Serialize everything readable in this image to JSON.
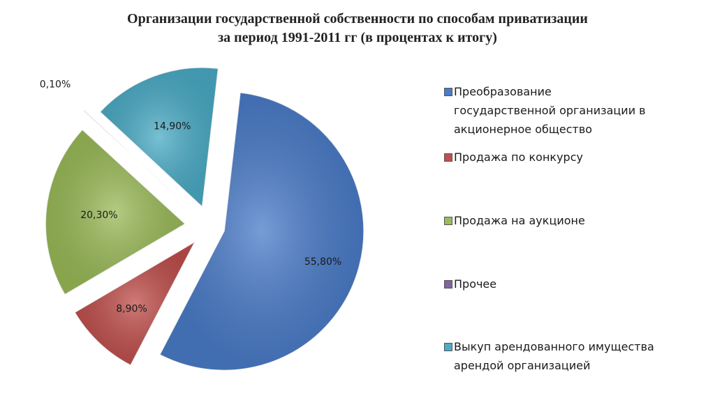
{
  "chart_data": {
    "type": "pie",
    "title_lines": [
      "Организации  государственной собственности по способам приватизации",
      "за период 1991-2011 гг (в процентах к итогу)"
    ],
    "unit": "%",
    "slices": [
      {
        "name": "Преобразование государственной организации в акционерное общество",
        "value": 55.8,
        "label": "55,80%",
        "color": "#4a7cc9"
      },
      {
        "name": "Продажа по конкурсу",
        "value": 8.9,
        "label": "8,90%",
        "color": "#c0504d"
      },
      {
        "name": "Продажа на аукционе",
        "value": 20.3,
        "label": "20,30%",
        "color": "#9bbb59"
      },
      {
        "name": "Прочее",
        "value": 0.1,
        "label": "0,10%",
        "color": "#8064a2"
      },
      {
        "name": "Выкуп арендованного имущества арендой организацией",
        "value": 14.9,
        "label": "14,90%",
        "color": "#4bacc6"
      }
    ],
    "legend_position": "right",
    "legend_lines": [
      [
        "Преобразование",
        "государственной организации в",
        "акционерное общество"
      ],
      [
        "Продажа по конкурсу"
      ],
      [
        "Продажа на аукционе"
      ],
      [
        "Прочее"
      ],
      [
        "Выкуп арендованного имущества",
        "арендой организацией"
      ]
    ]
  }
}
